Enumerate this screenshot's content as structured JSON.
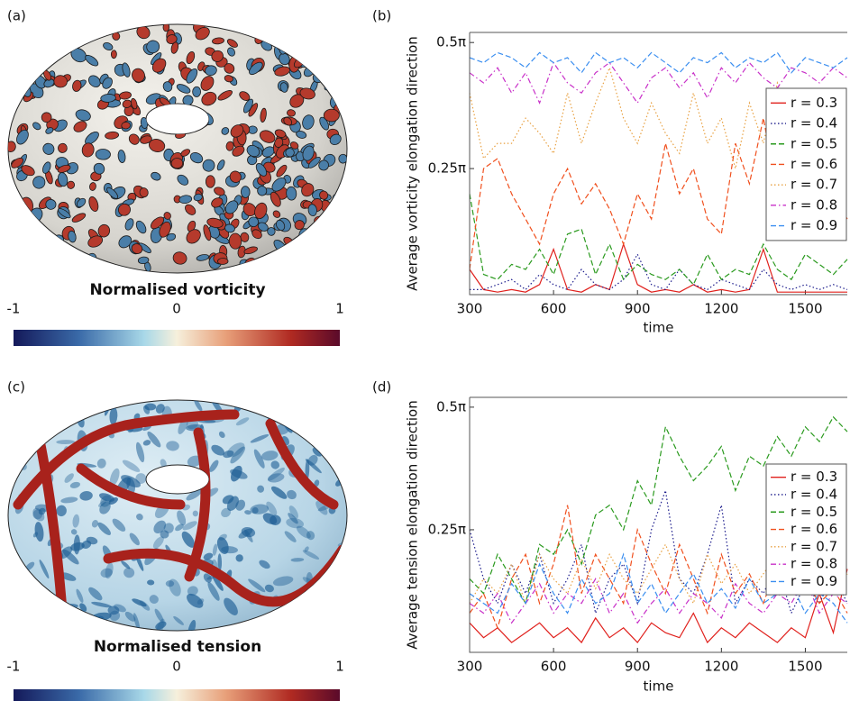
{
  "panels": [
    {
      "label": "(a)",
      "title": "Normalised vorticity",
      "clim": [
        -1,
        1
      ],
      "ticks": [
        -1,
        0,
        1
      ]
    },
    {
      "label": "(c)",
      "title": "Normalised tension",
      "clim": [
        -1,
        1
      ],
      "ticks": [
        -1,
        0,
        1
      ]
    }
  ],
  "chart_data": [
    {
      "type": "line",
      "label": "(b)",
      "ylabel": "Average vorticity elongation direction",
      "xlabel": "time",
      "x": [
        300,
        350,
        400,
        450,
        500,
        550,
        600,
        650,
        700,
        750,
        800,
        850,
        900,
        950,
        1000,
        1050,
        1100,
        1150,
        1200,
        1250,
        1300,
        1350,
        1400,
        1450,
        1500,
        1550,
        1600,
        1650
      ],
      "xlim": [
        300,
        1650
      ],
      "xticks": [
        300,
        600,
        900,
        1200,
        1500
      ],
      "ylim": [
        0,
        0.52
      ],
      "yticks": [
        {
          "value": 0.25,
          "label": "0.25π"
        },
        {
          "value": 0.5,
          "label": "0.5π"
        }
      ],
      "legend": "right",
      "series": [
        {
          "name": "r = 0.3",
          "color": "#e0201c",
          "dash": "solid",
          "values": [
            0.05,
            0.01,
            0.005,
            0.01,
            0.005,
            0.02,
            0.09,
            0.01,
            0.005,
            0.02,
            0.01,
            0.1,
            0.02,
            0.005,
            0.01,
            0.005,
            0.02,
            0.005,
            0.01,
            0.005,
            0.01,
            0.09,
            0.005,
            0.005,
            0.005,
            0.005,
            0.005,
            0.005
          ]
        },
        {
          "name": "r = 0.4",
          "color": "#1c1c8c",
          "dash": "dotted",
          "values": [
            0.01,
            0.01,
            0.02,
            0.03,
            0.01,
            0.04,
            0.02,
            0.01,
            0.05,
            0.02,
            0.01,
            0.03,
            0.08,
            0.02,
            0.01,
            0.05,
            0.02,
            0.01,
            0.03,
            0.02,
            0.01,
            0.05,
            0.02,
            0.01,
            0.02,
            0.01,
            0.02,
            0.01
          ]
        },
        {
          "name": "r = 0.5",
          "color": "#2a9a1e",
          "dash": "dashed",
          "values": [
            0.2,
            0.04,
            0.03,
            0.06,
            0.05,
            0.09,
            0.04,
            0.12,
            0.13,
            0.04,
            0.1,
            0.03,
            0.06,
            0.04,
            0.03,
            0.05,
            0.02,
            0.08,
            0.03,
            0.05,
            0.04,
            0.1,
            0.05,
            0.03,
            0.08,
            0.06,
            0.04,
            0.07
          ]
        },
        {
          "name": "r = 0.6",
          "color": "#f0501e",
          "dash": "dashed",
          "values": [
            0.05,
            0.25,
            0.27,
            0.2,
            0.15,
            0.1,
            0.2,
            0.25,
            0.18,
            0.22,
            0.17,
            0.1,
            0.2,
            0.15,
            0.3,
            0.2,
            0.25,
            0.15,
            0.12,
            0.3,
            0.22,
            0.35,
            0.2,
            0.25,
            0.3,
            0.28,
            0.2,
            0.15
          ]
        },
        {
          "name": "r = 0.7",
          "color": "#e8a040",
          "dash": "dotted",
          "values": [
            0.4,
            0.27,
            0.3,
            0.3,
            0.35,
            0.32,
            0.28,
            0.4,
            0.3,
            0.38,
            0.45,
            0.35,
            0.3,
            0.38,
            0.32,
            0.28,
            0.4,
            0.3,
            0.35,
            0.25,
            0.38,
            0.3,
            0.42,
            0.35,
            0.38,
            0.4,
            0.35,
            0.38
          ]
        },
        {
          "name": "r = 0.8",
          "color": "#c830c8",
          "dash": "dashdot",
          "values": [
            0.44,
            0.42,
            0.45,
            0.4,
            0.44,
            0.38,
            0.46,
            0.42,
            0.4,
            0.44,
            0.46,
            0.42,
            0.38,
            0.43,
            0.45,
            0.41,
            0.44,
            0.39,
            0.45,
            0.42,
            0.46,
            0.43,
            0.41,
            0.45,
            0.44,
            0.42,
            0.45,
            0.43
          ]
        },
        {
          "name": "r = 0.9",
          "color": "#3a8ef0",
          "dash": "dashed",
          "values": [
            0.47,
            0.46,
            0.48,
            0.47,
            0.45,
            0.48,
            0.46,
            0.47,
            0.44,
            0.48,
            0.46,
            0.47,
            0.45,
            0.48,
            0.46,
            0.44,
            0.47,
            0.46,
            0.48,
            0.45,
            0.47,
            0.46,
            0.48,
            0.44,
            0.47,
            0.46,
            0.45,
            0.47
          ]
        }
      ]
    },
    {
      "type": "line",
      "label": "(d)",
      "ylabel": "Average tension elongation direction",
      "xlabel": "time",
      "x": [
        300,
        350,
        400,
        450,
        500,
        550,
        600,
        650,
        700,
        750,
        800,
        850,
        900,
        950,
        1000,
        1050,
        1100,
        1150,
        1200,
        1250,
        1300,
        1350,
        1400,
        1450,
        1500,
        1550,
        1600,
        1650
      ],
      "xlim": [
        300,
        1650
      ],
      "xticks": [
        300,
        600,
        900,
        1200,
        1500
      ],
      "ylim": [
        0,
        0.52
      ],
      "yticks": [
        {
          "value": 0.25,
          "label": "0.25π"
        },
        {
          "value": 0.5,
          "label": "0.5π"
        }
      ],
      "legend": "right",
      "series": [
        {
          "name": "r = 0.3",
          "color": "#e0201c",
          "dash": "solid",
          "values": [
            0.06,
            0.03,
            0.05,
            0.02,
            0.04,
            0.06,
            0.03,
            0.05,
            0.02,
            0.07,
            0.03,
            0.05,
            0.02,
            0.06,
            0.04,
            0.03,
            0.08,
            0.02,
            0.05,
            0.03,
            0.06,
            0.04,
            0.02,
            0.05,
            0.03,
            0.12,
            0.04,
            0.17
          ]
        },
        {
          "name": "r = 0.4",
          "color": "#1c1c8c",
          "dash": "dotted",
          "values": [
            0.25,
            0.15,
            0.1,
            0.18,
            0.12,
            0.2,
            0.1,
            0.15,
            0.22,
            0.08,
            0.15,
            0.18,
            0.1,
            0.25,
            0.33,
            0.15,
            0.12,
            0.2,
            0.3,
            0.1,
            0.15,
            0.12,
            0.18,
            0.08,
            0.14,
            0.1,
            0.16,
            0.1
          ]
        },
        {
          "name": "r = 0.5",
          "color": "#2a9a1e",
          "dash": "dashed",
          "values": [
            0.15,
            0.12,
            0.2,
            0.15,
            0.1,
            0.22,
            0.2,
            0.25,
            0.18,
            0.28,
            0.3,
            0.25,
            0.35,
            0.3,
            0.46,
            0.4,
            0.35,
            0.38,
            0.42,
            0.33,
            0.4,
            0.38,
            0.44,
            0.4,
            0.46,
            0.43,
            0.48,
            0.45
          ]
        },
        {
          "name": "r = 0.6",
          "color": "#f0501e",
          "dash": "dashed",
          "values": [
            0.08,
            0.12,
            0.05,
            0.15,
            0.2,
            0.1,
            0.18,
            0.3,
            0.12,
            0.2,
            0.15,
            0.1,
            0.25,
            0.18,
            0.12,
            0.22,
            0.15,
            0.08,
            0.2,
            0.12,
            0.16,
            0.1,
            0.18,
            0.12,
            0.15,
            0.1,
            0.13,
            0.08
          ]
        },
        {
          "name": "r = 0.7",
          "color": "#e8a040",
          "dash": "dotted",
          "values": [
            0.1,
            0.15,
            0.12,
            0.18,
            0.1,
            0.2,
            0.15,
            0.12,
            0.19,
            0.13,
            0.2,
            0.15,
            0.12,
            0.17,
            0.22,
            0.15,
            0.1,
            0.2,
            0.14,
            0.18,
            0.12,
            0.16,
            0.2,
            0.13,
            0.15,
            0.18,
            0.12,
            0.16
          ]
        },
        {
          "name": "r = 0.8",
          "color": "#c830c8",
          "dash": "dashdot",
          "values": [
            0.1,
            0.08,
            0.12,
            0.06,
            0.1,
            0.14,
            0.08,
            0.12,
            0.1,
            0.15,
            0.08,
            0.12,
            0.06,
            0.1,
            0.13,
            0.08,
            0.12,
            0.1,
            0.07,
            0.14,
            0.1,
            0.08,
            0.12,
            0.1,
            0.15,
            0.08,
            0.12,
            0.1
          ]
        },
        {
          "name": "r = 0.9",
          "color": "#3a8ef0",
          "dash": "dashed",
          "values": [
            0.12,
            0.1,
            0.08,
            0.14,
            0.1,
            0.18,
            0.12,
            0.08,
            0.15,
            0.1,
            0.12,
            0.2,
            0.1,
            0.14,
            0.08,
            0.12,
            0.16,
            0.1,
            0.13,
            0.09,
            0.15,
            0.1,
            0.12,
            0.14,
            0.08,
            0.12,
            0.1,
            0.06
          ]
        }
      ]
    }
  ]
}
